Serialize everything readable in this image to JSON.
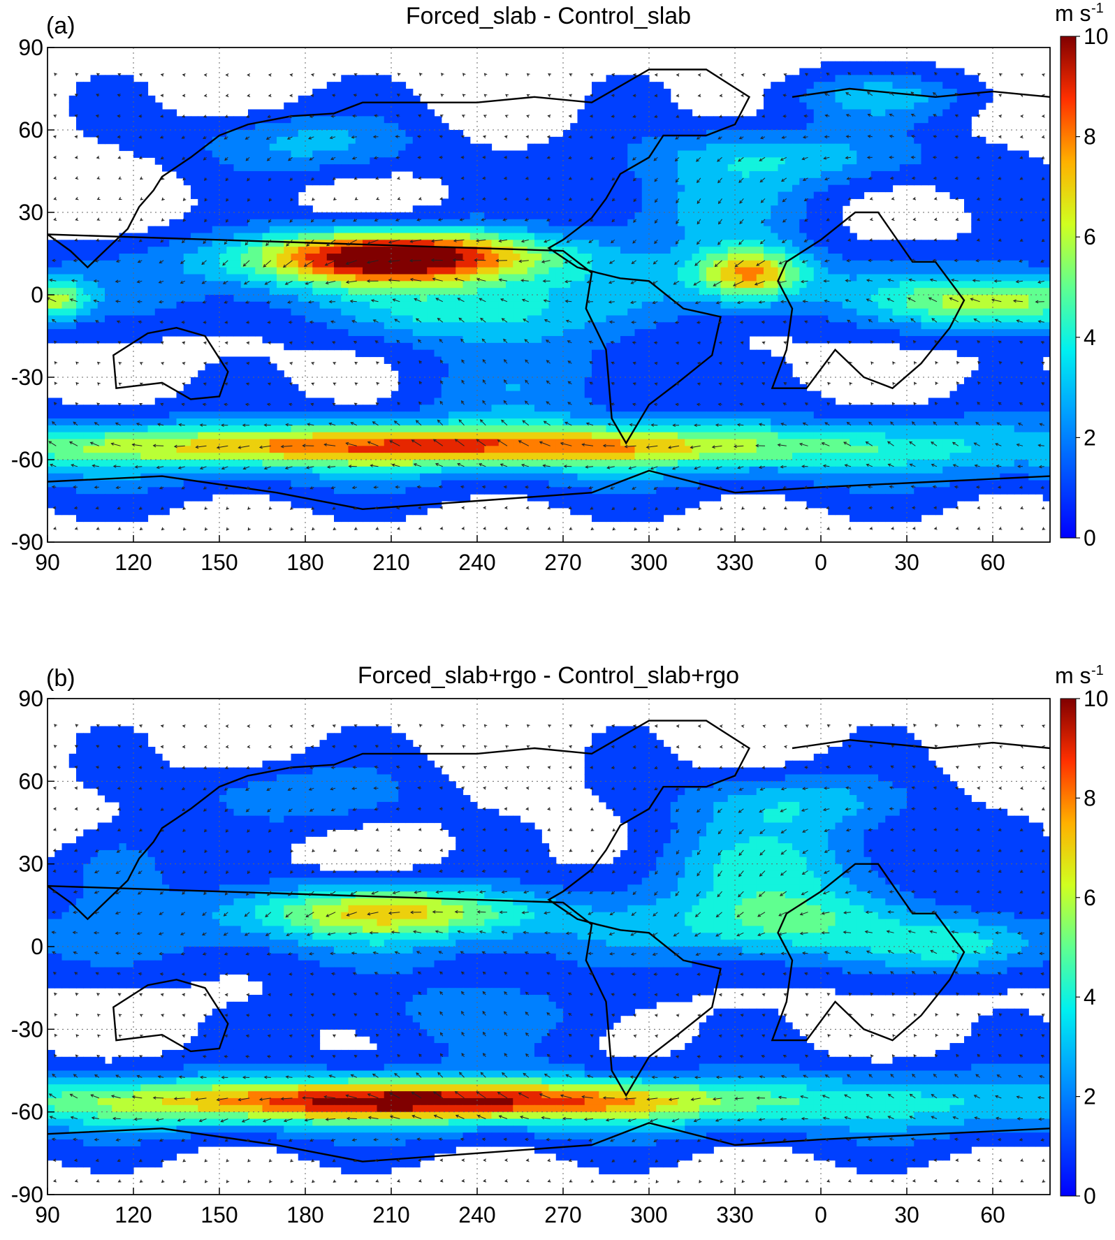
{
  "chart_data": [
    {
      "type": "heatmap",
      "panel_label": "(a)",
      "title": "Forced_slab - Control_slab",
      "xticks": [
        "90",
        "120",
        "150",
        "180",
        "210",
        "240",
        "270",
        "300",
        "330",
        "0",
        "30",
        "60"
      ],
      "yticks": [
        "90",
        "60",
        "30",
        "0",
        "-30",
        "-60",
        "-90"
      ],
      "xlim": [
        90,
        440
      ],
      "ylim": [
        -90,
        90
      ],
      "colorbar": {
        "ticks": [
          "0",
          "2",
          "4",
          "6",
          "8",
          "10"
        ],
        "range": [
          0,
          10
        ],
        "unit": "m s",
        "unit_exp": "-1"
      },
      "blobs": [
        {
          "lon": 212,
          "lat": 14,
          "slon": 38,
          "slat": 7,
          "amp": 10.5
        },
        {
          "lon": 335,
          "lat": 8,
          "slon": 14,
          "slat": 7,
          "amp": 6.5
        },
        {
          "lon": 420,
          "lat": -3,
          "slon": 26,
          "slat": 7,
          "amp": 5.0
        },
        {
          "lon": 225,
          "lat": -55,
          "slon": 95,
          "slat": 5,
          "amp": 6.0
        },
        {
          "lon": 92,
          "lat": -2,
          "slon": 8,
          "slat": 5,
          "amp": 4.5
        },
        {
          "lon": 240,
          "lat": -7,
          "slon": 30,
          "slat": 8,
          "amp": 2.8
        },
        {
          "lon": 345,
          "lat": 50,
          "slon": 40,
          "slat": 8,
          "amp": 3.0
        },
        {
          "lon": 320,
          "lat": 30,
          "slon": 25,
          "slat": 10,
          "amp": 2.5
        },
        {
          "lon": 180,
          "lat": 55,
          "slon": 30,
          "slat": 8,
          "amp": 2.6
        },
        {
          "lon": 380,
          "lat": 72,
          "slon": 25,
          "slat": 6,
          "amp": 2.5
        },
        {
          "lon": 260,
          "lat": -30,
          "slon": 30,
          "slat": 12,
          "amp": 1.8
        }
      ],
      "bands": [
        {
          "lat": -57,
          "slat": 10,
          "amp": 2.6
        },
        {
          "lat": 2,
          "slat": 10,
          "amp": 1.5
        }
      ]
    },
    {
      "type": "heatmap",
      "panel_label": "(b)",
      "title": "Forced_slab+rgo - Control_slab+rgo",
      "xticks": [
        "90",
        "120",
        "150",
        "180",
        "210",
        "240",
        "270",
        "300",
        "330",
        "0",
        "30",
        "60"
      ],
      "yticks": [
        "90",
        "60",
        "30",
        "0",
        "-30",
        "-60",
        "-90"
      ],
      "xlim": [
        90,
        440
      ],
      "ylim": [
        -90,
        90
      ],
      "colorbar": {
        "ticks": [
          "0",
          "2",
          "4",
          "6",
          "8",
          "10"
        ],
        "range": [
          0,
          10
        ],
        "unit": "m s",
        "unit_exp": "-1"
      },
      "blobs": [
        {
          "lon": 210,
          "lat": 13,
          "slon": 38,
          "slat": 7,
          "amp": 5.8
        },
        {
          "lon": 345,
          "lat": 10,
          "slon": 28,
          "slat": 9,
          "amp": 3.5
        },
        {
          "lon": 340,
          "lat": 30,
          "slon": 30,
          "slat": 10,
          "amp": 3.2
        },
        {
          "lon": 350,
          "lat": 52,
          "slon": 30,
          "slat": 8,
          "amp": 3.0
        },
        {
          "lon": 220,
          "lat": -56,
          "slon": 70,
          "slat": 5,
          "amp": 7.0
        },
        {
          "lon": 410,
          "lat": 0,
          "slon": 20,
          "slat": 7,
          "amp": 2.6
        },
        {
          "lon": 180,
          "lat": 55,
          "slon": 30,
          "slat": 8,
          "amp": 2.2
        },
        {
          "lon": 115,
          "lat": 28,
          "slon": 12,
          "slat": 10,
          "amp": 2.5
        },
        {
          "lon": 240,
          "lat": -25,
          "slon": 35,
          "slat": 10,
          "amp": 1.8
        }
      ],
      "bands": [
        {
          "lat": -57,
          "slat": 9,
          "amp": 3.2
        },
        {
          "lat": 3,
          "slat": 10,
          "amp": 1.4
        }
      ]
    }
  ]
}
